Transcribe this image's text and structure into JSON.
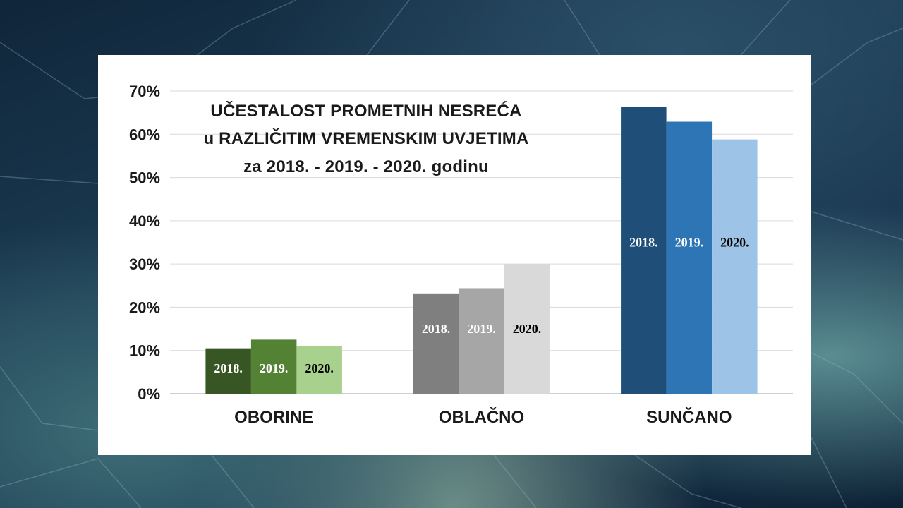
{
  "chart_data": {
    "type": "bar",
    "title_lines": [
      "UČESTALOST PROMETNIH NESREĆA",
      "u RAZLIČITIM VREMENSKIM UVJETIMA",
      "za 2018. - 2019. - 2020. godinu"
    ],
    "categories": [
      "OBORINE",
      "OBLAČNO",
      "SUNČANO"
    ],
    "series": [
      {
        "name": "2018.",
        "values": [
          10.5,
          23.2,
          66.3
        ]
      },
      {
        "name": "2019.",
        "values": [
          12.5,
          24.4,
          62.9
        ]
      },
      {
        "name": "2020.",
        "values": [
          11.1,
          30.0,
          58.8
        ]
      }
    ],
    "colors": [
      [
        "#375623",
        "#548235",
        "#a9d18e"
      ],
      [
        "#7f7f7f",
        "#a6a6a6",
        "#d9d9d9"
      ],
      [
        "#1f4e79",
        "#2e75b6",
        "#9dc3e6"
      ]
    ],
    "label_colors": [
      [
        "#ffffff",
        "#ffffff",
        "#000000"
      ],
      [
        "#ffffff",
        "#ffffff",
        "#000000"
      ],
      [
        "#ffffff",
        "#ffffff",
        "#000000"
      ]
    ],
    "ylim": [
      0,
      70
    ],
    "yticks": [
      0,
      10,
      20,
      30,
      40,
      50,
      60,
      70
    ],
    "ytick_labels": [
      "0%",
      "10%",
      "20%",
      "30%",
      "40%",
      "50%",
      "60%",
      "70%"
    ],
    "grid": true,
    "legend": "none"
  }
}
